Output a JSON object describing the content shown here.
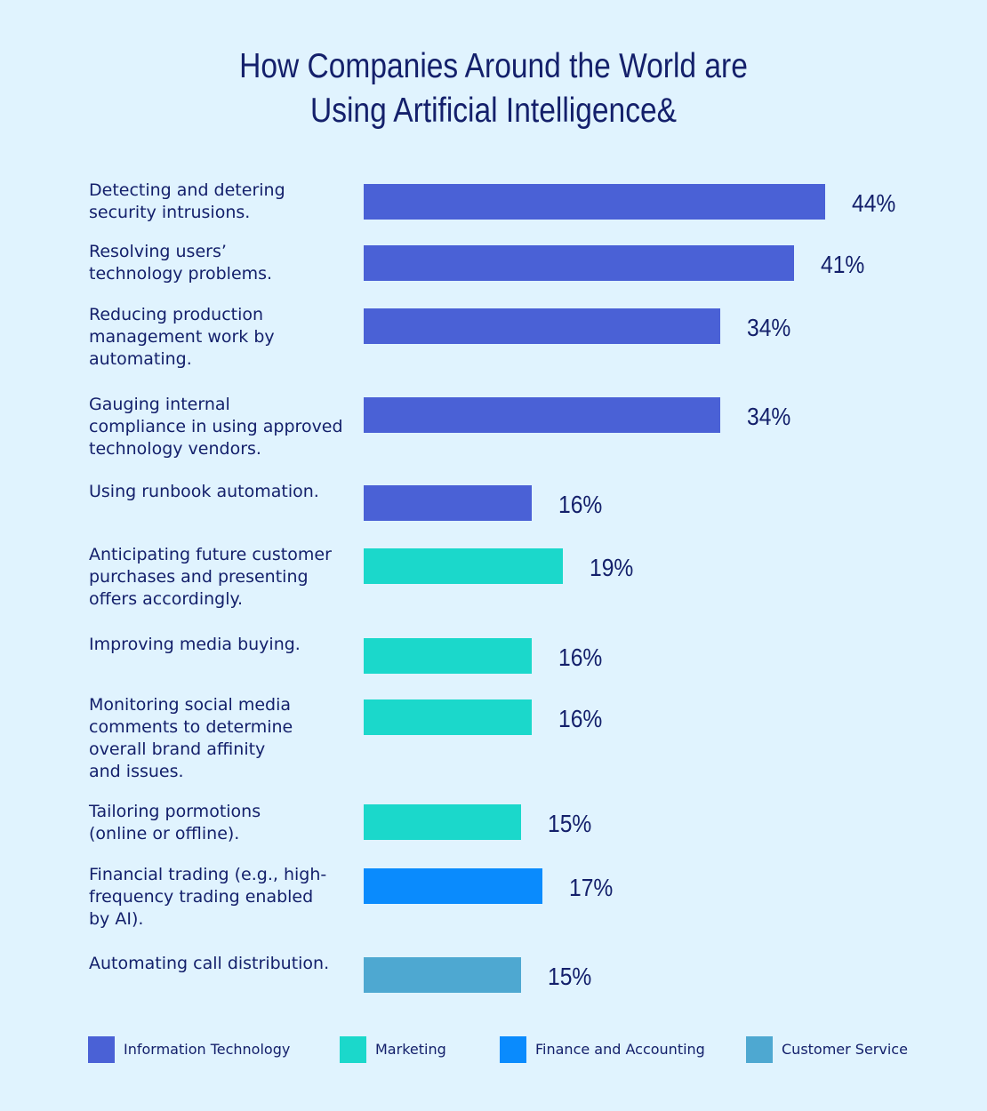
{
  "chart_data": {
    "type": "bar",
    "orientation": "horizontal",
    "title": "How Companies Around the World are Using Artificial Intelligence&",
    "title_lines": [
      "How Companies Around the World are",
      "Using Artificial Intelligence&"
    ],
    "xlim": [
      0,
      44
    ],
    "unit": "%",
    "grid": false,
    "legend_position": "bottom",
    "categories": [
      "Detecting and detering\nsecurity intrusions.",
      "Resolving users’\ntechnology problems.",
      "Reducing production\nmanagement work by\nautomating.",
      "Gauging internal\ncompliance in using approved\ntechnology vendors.",
      "Using runbook automation.",
      "Anticipating future customer\npurchases and presenting\noffers accordingly.",
      "Improving media buying.",
      "Monitoring social media\ncomments to determine\noverall brand affinity\nand issues.",
      "Tailoring pormotions\n(online or offline).",
      "Financial trading (e.g., high-\nfrequency trading enabled\nby AI).",
      "Automating call distribution."
    ],
    "values": [
      44,
      41,
      34,
      34,
      16,
      19,
      16,
      16,
      15,
      17,
      15
    ],
    "value_labels": [
      "44%",
      "41%",
      "34%",
      "34%",
      "16%",
      "19%",
      "16%",
      "16%",
      "15%",
      "17%",
      "15%"
    ],
    "groups": [
      0,
      0,
      0,
      0,
      0,
      1,
      1,
      1,
      1,
      2,
      3
    ],
    "legend": [
      {
        "name": "Information Technology",
        "color": "#4a61d6"
      },
      {
        "name": "Marketing",
        "color": "#1bd8cb"
      },
      {
        "name": "Finance and Accounting",
        "color": "#0a8bfd"
      },
      {
        "name": "Customer Service",
        "color": "#4ea8d1"
      }
    ]
  }
}
